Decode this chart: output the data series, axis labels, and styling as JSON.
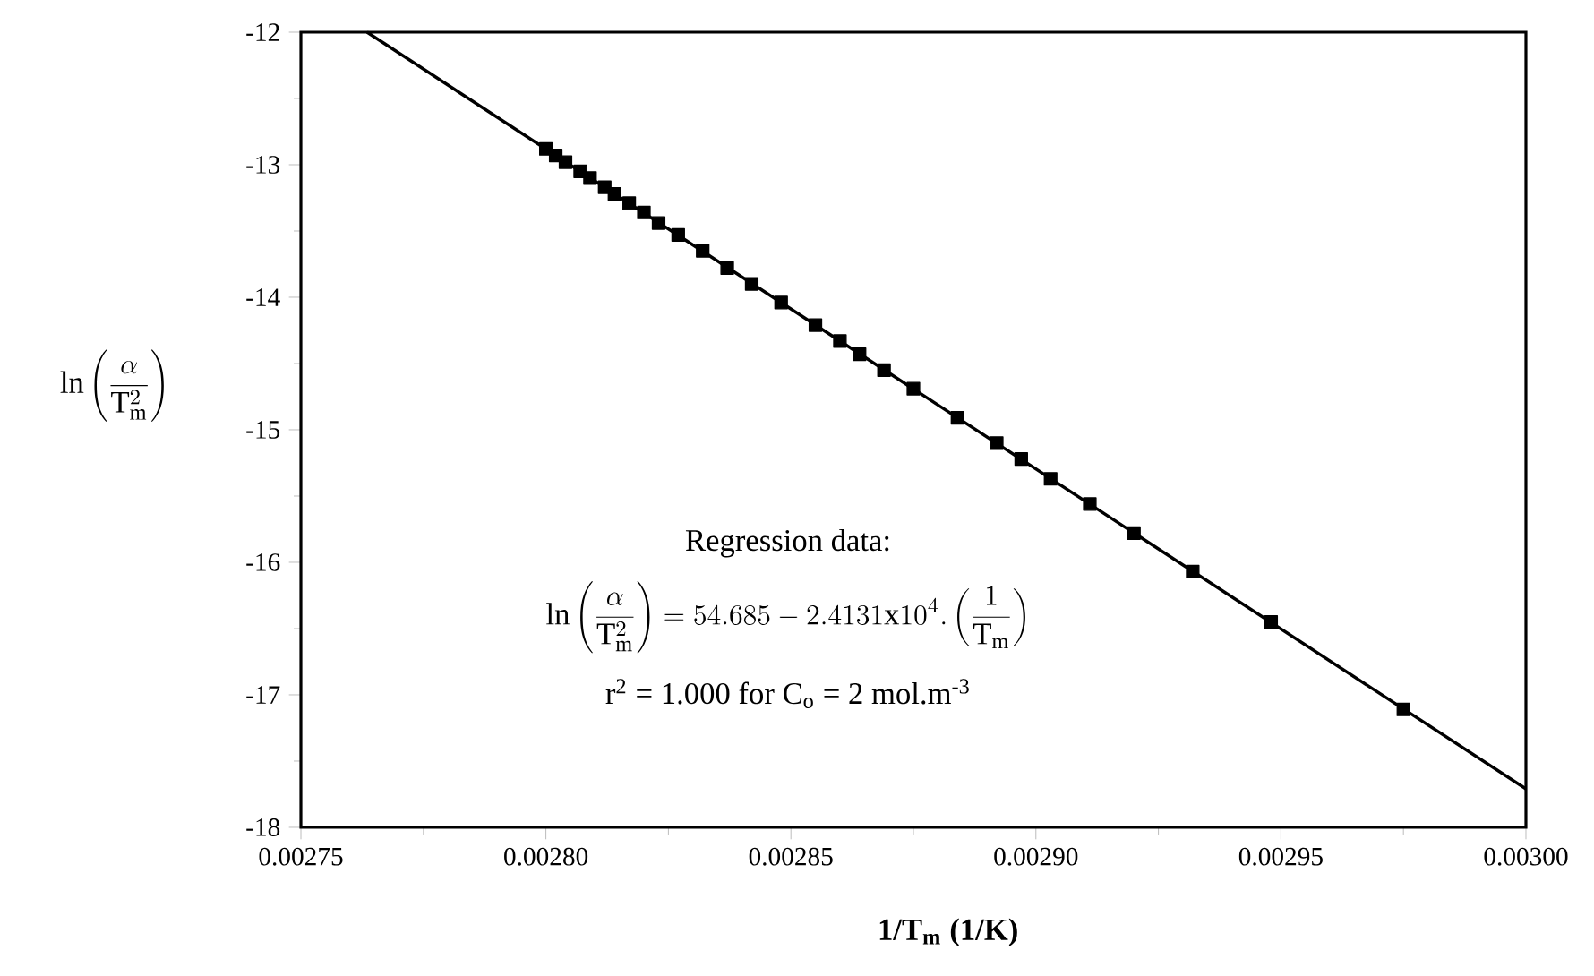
{
  "chart_data": {
    "type": "scatter",
    "xlabel": "1/T$_{m}$ (1/K)",
    "ylabel": "\\ln\\left(\\frac{\\alpha}{\\mathrm{T}_{\\mathrm{m}}^{2}}\\right)",
    "xlim": [
      0.00275,
      0.003
    ],
    "ylim": [
      -18,
      -12
    ],
    "xticks": [
      0.00275,
      {
        "value": 0.0028,
        "label": "0.00280"
      },
      0.00285,
      {
        "value": 0.0029,
        "label": "0.00290"
      },
      0.00295,
      {
        "value": 0.003,
        "label": "0.00300"
      }
    ],
    "yticks": [
      -18,
      -17,
      -16,
      -15,
      -14,
      -13,
      -12
    ],
    "series": [
      {
        "marker": "square",
        "color": "#000000",
        "x": [
          0.0028,
          0.002802,
          0.002804,
          0.002807,
          0.002809,
          0.002812,
          0.002814,
          0.002817,
          0.00282,
          0.002823,
          0.002827,
          0.002832,
          0.002837,
          0.002842,
          0.002848,
          0.002855,
          0.00286,
          0.002864,
          0.002869,
          0.002875,
          0.002884,
          0.002892,
          0.002897,
          0.002903,
          0.002911,
          0.00292,
          0.002932,
          0.002948,
          0.002975
        ],
        "values": [
          -12.88,
          -12.93,
          -12.98,
          -13.05,
          -13.1,
          -13.17,
          -13.22,
          -13.29,
          -13.36,
          -13.44,
          -13.53,
          -13.65,
          -13.78,
          -13.9,
          -14.04,
          -14.21,
          -14.33,
          -14.43,
          -14.55,
          -14.69,
          -14.91,
          -15.1,
          -15.22,
          -15.37,
          -15.56,
          -15.78,
          -16.07,
          -16.45,
          -17.11
        ]
      },
      {
        "type": "line",
        "marker": "none",
        "line_style": "solid",
        "color": "#000000",
        "x": [
          0.0027635,
          0.003
        ],
        "values": [
          -12,
          -17.71
        ]
      }
    ],
    "annotations": [
      "Regression data:",
      "\\ln\\left(\\frac{\\alpha}{\\mathrm{T}_{\\mathrm{m}}^{2}}\\right) = 54.685 - 2.4131\\mathrm{x}10^{4}.\\left(\\frac{1}{\\mathrm{T}_{\\mathrm{m}}}\\right)",
      "r$^{2}$ = 1.000 for C$_{o}$ = 2 mol.m$^{-3}$"
    ]
  }
}
